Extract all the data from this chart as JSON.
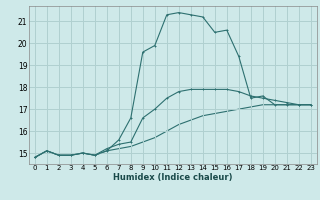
{
  "xlabel": "Humidex (Indice chaleur)",
  "background_color": "#cee9e9",
  "grid_color": "#b0d0d0",
  "line_color": "#2d7070",
  "xlim": [
    -0.5,
    23.5
  ],
  "ylim": [
    14.5,
    21.7
  ],
  "yticks": [
    15,
    16,
    17,
    18,
    19,
    20,
    21
  ],
  "xticks": [
    0,
    1,
    2,
    3,
    4,
    5,
    6,
    7,
    8,
    9,
    10,
    11,
    12,
    13,
    14,
    15,
    16,
    17,
    18,
    19,
    20,
    21,
    22,
    23
  ],
  "series1_x": [
    0,
    1,
    2,
    3,
    4,
    5,
    6,
    7,
    8,
    9,
    10,
    11,
    12,
    13,
    14,
    15,
    16,
    17,
    18,
    19,
    20,
    21,
    22,
    23
  ],
  "series1_y": [
    14.8,
    15.1,
    14.9,
    14.9,
    15.0,
    14.9,
    15.1,
    15.6,
    16.6,
    19.6,
    19.9,
    21.3,
    21.4,
    21.3,
    21.2,
    20.5,
    20.6,
    19.4,
    17.5,
    17.6,
    17.2,
    17.2,
    17.2,
    17.2
  ],
  "series2_x": [
    0,
    1,
    2,
    3,
    4,
    5,
    6,
    7,
    8,
    9,
    10,
    11,
    12,
    13,
    14,
    15,
    16,
    17,
    18,
    19,
    20,
    21,
    22,
    23
  ],
  "series2_y": [
    14.8,
    15.1,
    14.9,
    14.9,
    15.0,
    14.9,
    15.2,
    15.4,
    15.5,
    16.6,
    17.0,
    17.5,
    17.8,
    17.9,
    17.9,
    17.9,
    17.9,
    17.8,
    17.6,
    17.5,
    17.4,
    17.3,
    17.2,
    17.2
  ],
  "series3_x": [
    0,
    1,
    2,
    3,
    4,
    5,
    6,
    7,
    8,
    9,
    10,
    11,
    12,
    13,
    14,
    15,
    16,
    17,
    18,
    19,
    20,
    21,
    22,
    23
  ],
  "series3_y": [
    14.8,
    15.1,
    14.9,
    14.9,
    15.0,
    14.9,
    15.1,
    15.2,
    15.3,
    15.5,
    15.7,
    16.0,
    16.3,
    16.5,
    16.7,
    16.8,
    16.9,
    17.0,
    17.1,
    17.2,
    17.2,
    17.2,
    17.2,
    17.2
  ]
}
